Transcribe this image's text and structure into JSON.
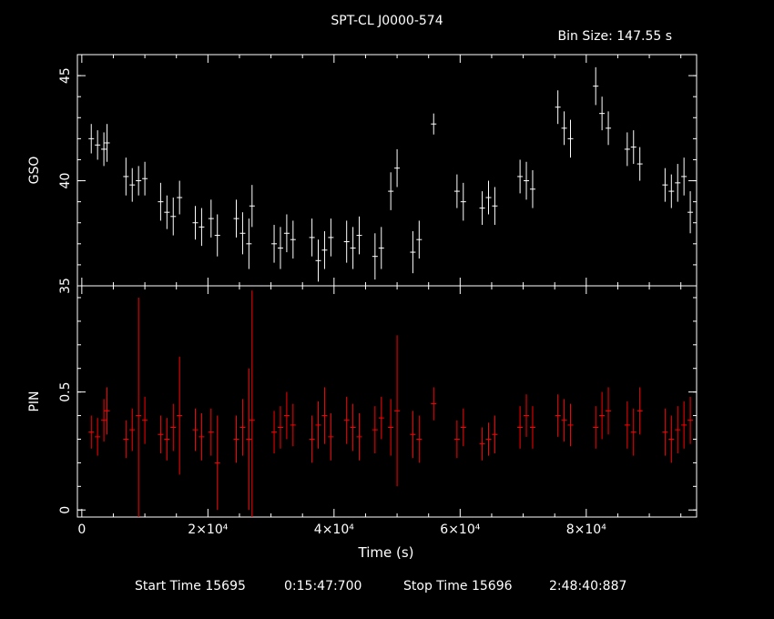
{
  "title": "SPT-CL J0000-574",
  "bin_size": "Bin Size: 147.55 s",
  "footer": {
    "start_label": "Start Time 15695",
    "start_time": "0:15:47:700",
    "stop_label": "Stop Time 15696",
    "stop_time": "2:48:40:887"
  },
  "colors": {
    "background": "#000000",
    "axes": "#ffffff",
    "gso": "#ffffff",
    "pin": "#ff0000"
  },
  "chart_data": [
    {
      "type": "scatter",
      "panel": "top",
      "ylabel": "GSO",
      "xlabel": "",
      "xlim": [
        -700,
        97500
      ],
      "ylim": [
        35,
        46
      ],
      "yticks": [
        35,
        40,
        45
      ],
      "yticklabels": [
        "35",
        "40",
        "45"
      ],
      "error_bars": true,
      "series": [
        {
          "color": "#ffffff",
          "x": [
            1500,
            2500,
            3500,
            4000,
            7000,
            8000,
            9000,
            10000,
            12500,
            13500,
            14500,
            15500,
            18000,
            19000,
            20500,
            21500,
            24500,
            25500,
            26500,
            27000,
            30500,
            31500,
            32500,
            33500,
            36500,
            37500,
            38500,
            39500,
            42000,
            43000,
            44000,
            46500,
            47500,
            49000,
            50000,
            52500,
            53500,
            55800,
            59500,
            60500,
            63500,
            64500,
            65500,
            69500,
            70500,
            71500,
            75500,
            76500,
            77500,
            81500,
            82500,
            83500,
            86500,
            87500,
            88500,
            92500,
            93500,
            94500,
            95500,
            96500
          ],
          "y": [
            42.0,
            41.7,
            41.5,
            41.8,
            40.2,
            39.8,
            40.0,
            40.1,
            39.0,
            38.5,
            38.3,
            39.2,
            38.0,
            37.8,
            38.2,
            37.4,
            38.2,
            37.5,
            37.0,
            38.8,
            37.0,
            36.8,
            37.5,
            37.2,
            37.3,
            36.2,
            36.7,
            37.3,
            37.1,
            36.8,
            37.4,
            36.4,
            36.8,
            39.5,
            40.6,
            36.6,
            37.2,
            42.7,
            39.5,
            39.0,
            38.7,
            39.2,
            38.8,
            40.2,
            40.0,
            39.6,
            43.5,
            42.5,
            42.0,
            44.5,
            43.2,
            42.5,
            41.5,
            41.6,
            40.8,
            39.8,
            39.5,
            39.9,
            40.2,
            38.5
          ],
          "err": [
            0.7,
            0.7,
            0.8,
            0.9,
            0.9,
            0.8,
            0.7,
            0.8,
            0.9,
            0.8,
            0.9,
            0.8,
            0.8,
            0.9,
            0.9,
            1.0,
            0.9,
            1.0,
            1.2,
            1.0,
            0.9,
            1.0,
            0.9,
            0.9,
            0.9,
            1.0,
            0.9,
            0.9,
            1.0,
            1.0,
            0.9,
            1.1,
            1.0,
            0.9,
            0.9,
            1.0,
            0.9,
            0.5,
            0.8,
            0.9,
            0.8,
            0.8,
            0.9,
            0.8,
            0.9,
            0.9,
            0.8,
            0.8,
            0.9,
            0.9,
            0.8,
            0.8,
            0.8,
            0.8,
            0.8,
            0.8,
            0.8,
            0.9,
            0.9,
            1.0
          ]
        }
      ]
    },
    {
      "type": "scatter",
      "panel": "bottom",
      "ylabel": "PIN",
      "xlabel": "Time (s)",
      "xlim": [
        -700,
        97500
      ],
      "ylim": [
        -0.03,
        0.95
      ],
      "yticks": [
        0,
        0.5
      ],
      "yticklabels": [
        "0",
        "0.5"
      ],
      "xticks": [
        0,
        20000,
        40000,
        60000,
        80000
      ],
      "xticklabels": [
        "0",
        "2×10⁴",
        "4×10⁴",
        "6×10⁴",
        "8×10⁴"
      ],
      "error_bars": true,
      "series": [
        {
          "color": "#ff0000",
          "x": [
            1500,
            2500,
            3500,
            4000,
            7000,
            8000,
            9000,
            10000,
            12500,
            13500,
            14500,
            15500,
            18000,
            19000,
            20500,
            21500,
            24500,
            25500,
            26500,
            27000,
            30500,
            31500,
            32500,
            33500,
            36500,
            37500,
            38500,
            39500,
            42000,
            43000,
            44000,
            46500,
            47500,
            49000,
            50000,
            52500,
            53500,
            55800,
            59500,
            60500,
            63500,
            64500,
            65500,
            69500,
            70500,
            71500,
            75500,
            76500,
            77500,
            81500,
            82500,
            83500,
            86500,
            87500,
            88500,
            92500,
            93500,
            94500,
            95500,
            96500
          ],
          "y": [
            0.33,
            0.31,
            0.38,
            0.42,
            0.3,
            0.34,
            0.4,
            0.38,
            0.32,
            0.3,
            0.35,
            0.4,
            0.34,
            0.31,
            0.33,
            0.2,
            0.3,
            0.35,
            0.3,
            0.38,
            0.33,
            0.35,
            0.4,
            0.36,
            0.3,
            0.36,
            0.4,
            0.31,
            0.38,
            0.35,
            0.31,
            0.34,
            0.39,
            0.35,
            0.42,
            0.32,
            0.3,
            0.45,
            0.3,
            0.35,
            0.28,
            0.3,
            0.32,
            0.35,
            0.4,
            0.35,
            0.4,
            0.38,
            0.36,
            0.35,
            0.4,
            0.42,
            0.36,
            0.33,
            0.42,
            0.33,
            0.3,
            0.34,
            0.36,
            0.38
          ],
          "err": [
            0.07,
            0.08,
            0.09,
            0.1,
            0.08,
            0.09,
            0.5,
            0.1,
            0.08,
            0.09,
            0.1,
            0.25,
            0.09,
            0.1,
            0.1,
            0.2,
            0.1,
            0.12,
            0.3,
            0.55,
            0.09,
            0.09,
            0.1,
            0.09,
            0.1,
            0.1,
            0.12,
            0.1,
            0.1,
            0.1,
            0.1,
            0.1,
            0.09,
            0.12,
            0.32,
            0.1,
            0.1,
            0.07,
            0.08,
            0.08,
            0.07,
            0.07,
            0.08,
            0.09,
            0.09,
            0.09,
            0.09,
            0.09,
            0.09,
            0.09,
            0.1,
            0.1,
            0.1,
            0.1,
            0.1,
            0.1,
            0.1,
            0.1,
            0.1,
            0.1
          ]
        }
      ]
    }
  ]
}
